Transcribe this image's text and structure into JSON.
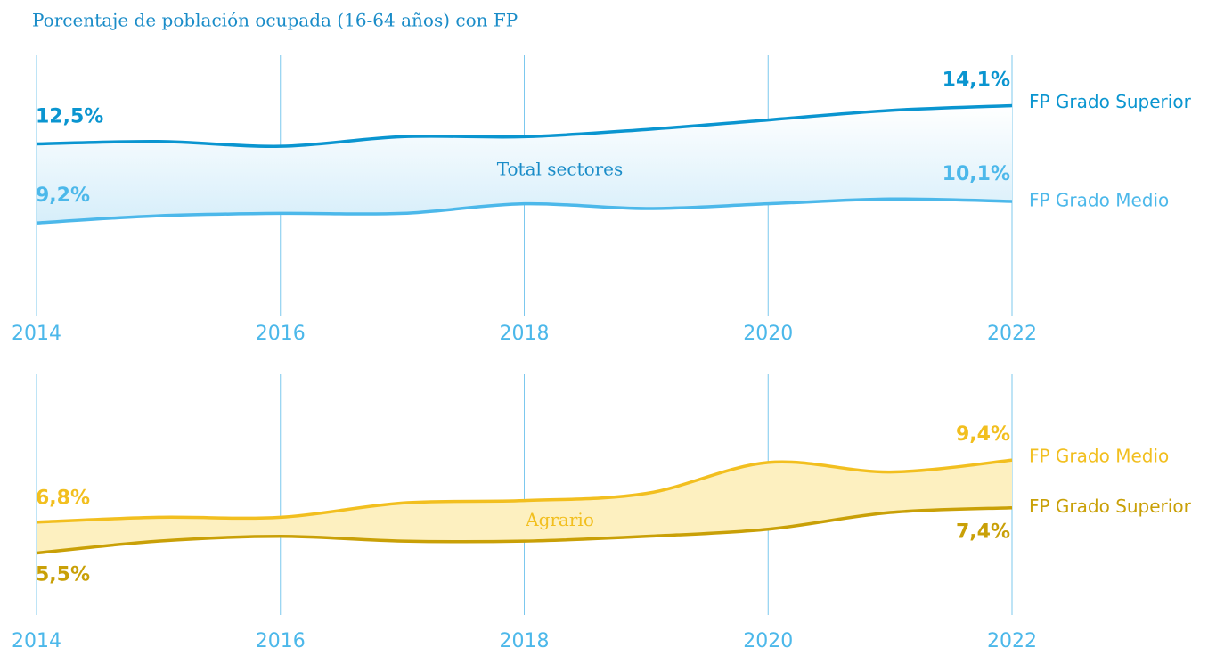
{
  "chart_data": [
    {
      "type": "line",
      "title": "Porcentaje de población ocupada (16-64 años) con FP",
      "label": "Total sectores",
      "label_color": "#1a8cc8",
      "fill": "#d6eefa",
      "x": [
        2014,
        2015,
        2016,
        2017,
        2018,
        2019,
        2020,
        2021,
        2022
      ],
      "xlim": [
        2014,
        2022
      ],
      "xticks": [
        2014,
        2016,
        2018,
        2020,
        2022
      ],
      "ylim": [
        5.3,
        16.2
      ],
      "grid": true,
      "series": [
        {
          "name": "FP Grado Superior",
          "color": "#0a95d0",
          "values": [
            12.5,
            12.6,
            12.4,
            12.8,
            12.8,
            13.1,
            13.5,
            13.9,
            14.1
          ],
          "value_labels": [
            "12,5%",
            null,
            null,
            null,
            null,
            null,
            null,
            null,
            "14,1%"
          ]
        },
        {
          "name": "FP Grado Medio",
          "color": "#4cb8ea",
          "values": [
            9.2,
            9.5,
            9.6,
            9.6,
            10.0,
            9.8,
            10.0,
            10.2,
            10.1
          ],
          "value_labels": [
            "9,2%",
            null,
            null,
            null,
            null,
            null,
            null,
            null,
            "10,1%"
          ]
        }
      ]
    },
    {
      "type": "line",
      "label": "Agrario",
      "label_color": "#f2bf1f",
      "fill": "#fdf0c0",
      "x": [
        2014,
        2015,
        2016,
        2017,
        2018,
        2019,
        2020,
        2021,
        2022
      ],
      "xlim": [
        2014,
        2022
      ],
      "xticks": [
        2014,
        2016,
        2018,
        2020,
        2022
      ],
      "ylim": [
        2.9,
        13.0
      ],
      "grid": true,
      "series": [
        {
          "name": "FP Grado Medio",
          "color": "#f2bf1f",
          "values": [
            6.8,
            7.0,
            7.0,
            7.6,
            7.7,
            8.0,
            9.3,
            8.9,
            9.4
          ],
          "value_labels": [
            "6,8%",
            null,
            null,
            null,
            null,
            null,
            null,
            null,
            "9,4%"
          ]
        },
        {
          "name": "FP Grado Superior",
          "color": "#c9a007",
          "values": [
            5.5,
            6.0,
            6.2,
            6.0,
            6.0,
            6.2,
            6.5,
            7.2,
            7.4
          ],
          "value_labels": [
            "5,5%",
            null,
            null,
            null,
            null,
            null,
            null,
            null,
            "7,4%"
          ]
        }
      ]
    }
  ]
}
